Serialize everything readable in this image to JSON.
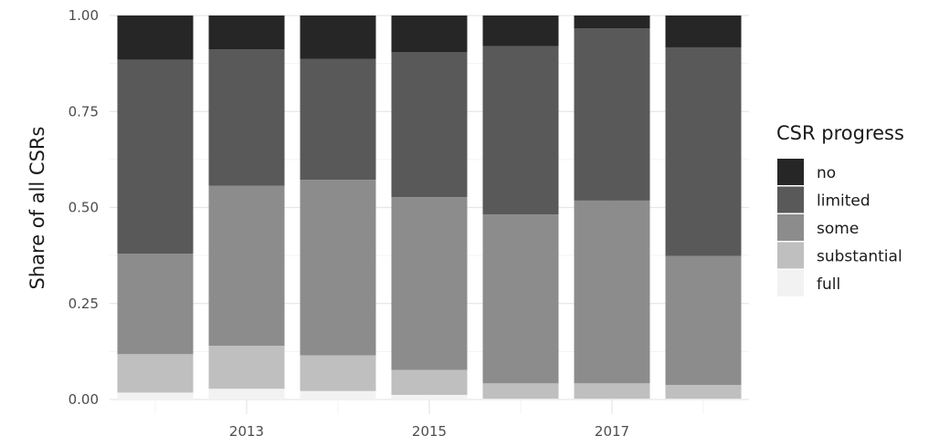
{
  "chart_data": {
    "type": "bar",
    "stacked": true,
    "normalized": true,
    "x": [
      2012,
      2013,
      2014,
      2015,
      2016,
      2017,
      2018
    ],
    "x_tick_labels": [
      "2013",
      "2015",
      "2017"
    ],
    "x_tick_values": [
      2013,
      2015,
      2017
    ],
    "ylabel": "Share of all CSRs",
    "ylim": [
      0,
      1
    ],
    "y_ticks": [
      0,
      0.25,
      0.5,
      0.75,
      1
    ],
    "y_tick_labels": [
      "0.00",
      "0.25",
      "0.50",
      "0.75",
      "1.00"
    ],
    "grid": true,
    "legend": {
      "title": "CSR progress",
      "position": "right"
    },
    "series": [
      {
        "name": "full",
        "color": "#f2f2f2",
        "values": [
          0.018,
          0.028,
          0.022,
          0.012,
          0.002,
          0.002,
          0.002
        ]
      },
      {
        "name": "substantial",
        "color": "#bfbfbf",
        "values": [
          0.1,
          0.112,
          0.093,
          0.065,
          0.04,
          0.04,
          0.036
        ]
      },
      {
        "name": "some",
        "color": "#8c8c8c",
        "values": [
          0.262,
          0.417,
          0.457,
          0.45,
          0.44,
          0.476,
          0.336
        ]
      },
      {
        "name": "limited",
        "color": "#595959",
        "values": [
          0.505,
          0.355,
          0.315,
          0.378,
          0.438,
          0.448,
          0.543
        ]
      },
      {
        "name": "no",
        "color": "#262626",
        "values": [
          0.115,
          0.088,
          0.113,
          0.095,
          0.08,
          0.034,
          0.083
        ]
      }
    ]
  }
}
